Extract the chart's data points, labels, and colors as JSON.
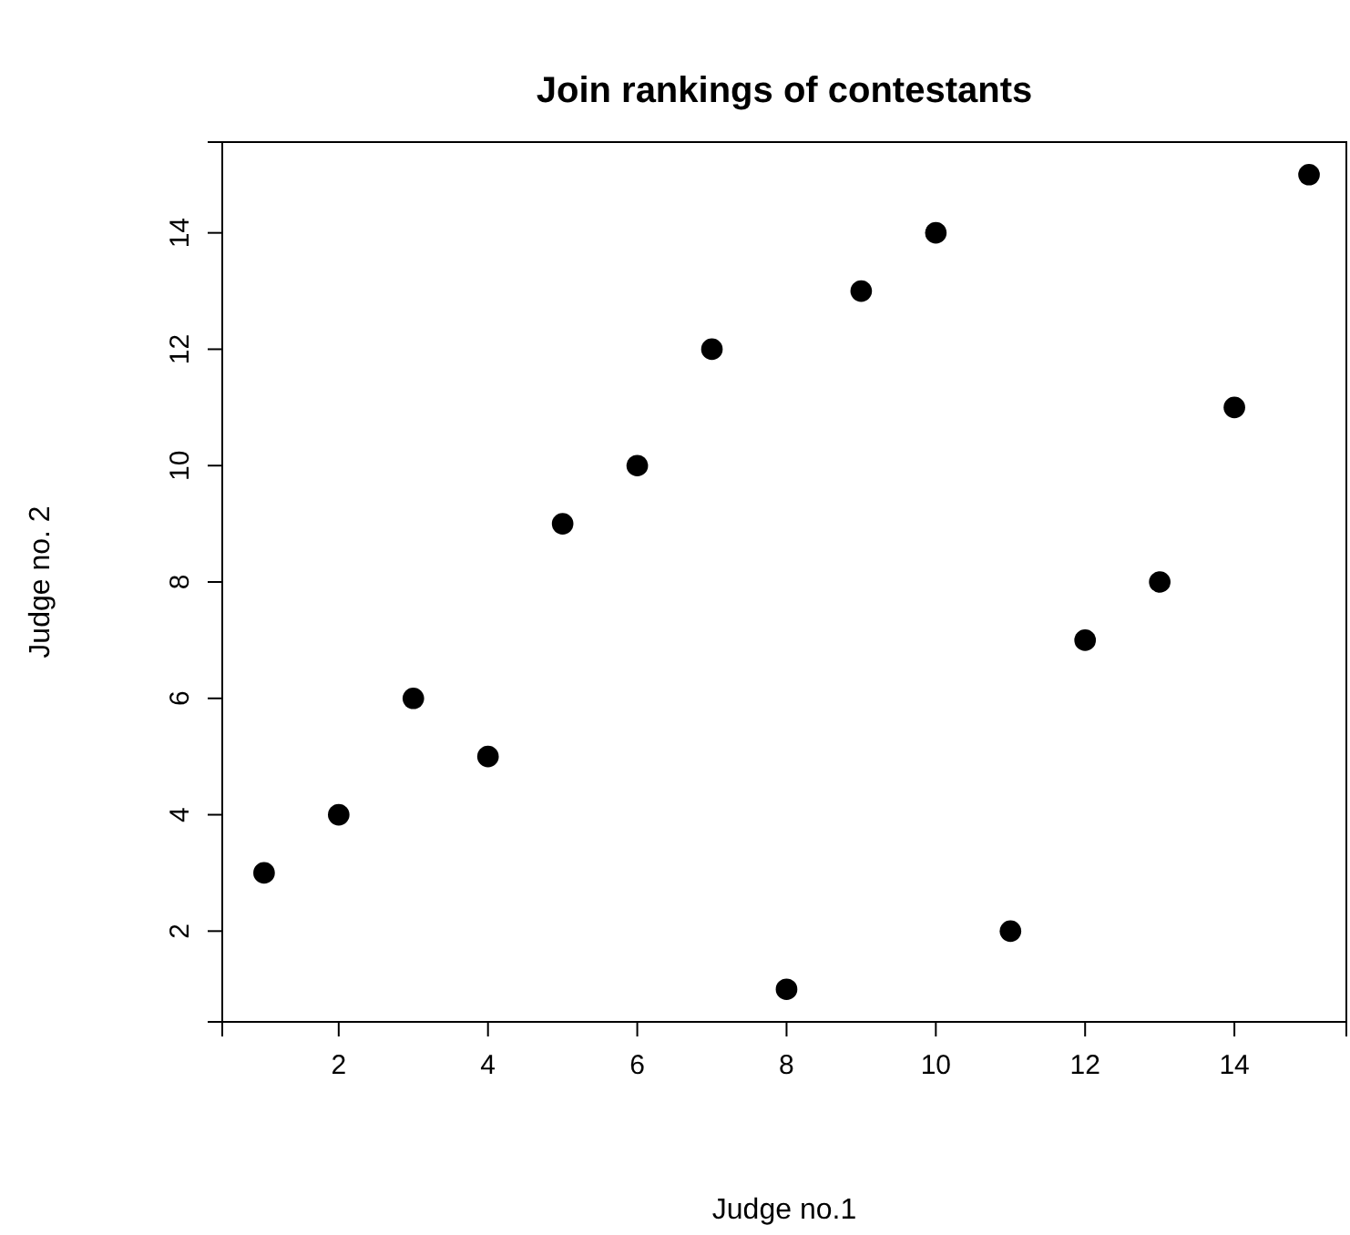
{
  "chart_data": {
    "type": "scatter",
    "title": "Join rankings of contestants",
    "xlabel": "Judge no.1",
    "ylabel": "Judge no. 2",
    "x": [
      1,
      2,
      3,
      4,
      5,
      6,
      7,
      8,
      9,
      10,
      11,
      12,
      13,
      14,
      15
    ],
    "values": [
      3,
      4,
      6,
      5,
      9,
      10,
      12,
      1,
      13,
      14,
      2,
      7,
      8,
      11,
      15
    ],
    "color": "#000000",
    "marker": "circle",
    "grid": false,
    "xlim": [
      0.44,
      15.5
    ],
    "ylim": [
      0.44,
      15.56
    ],
    "xticks": [
      2,
      4,
      6,
      8,
      10,
      12,
      14
    ],
    "yticks": [
      2,
      4,
      6,
      8,
      10,
      12,
      14
    ]
  }
}
